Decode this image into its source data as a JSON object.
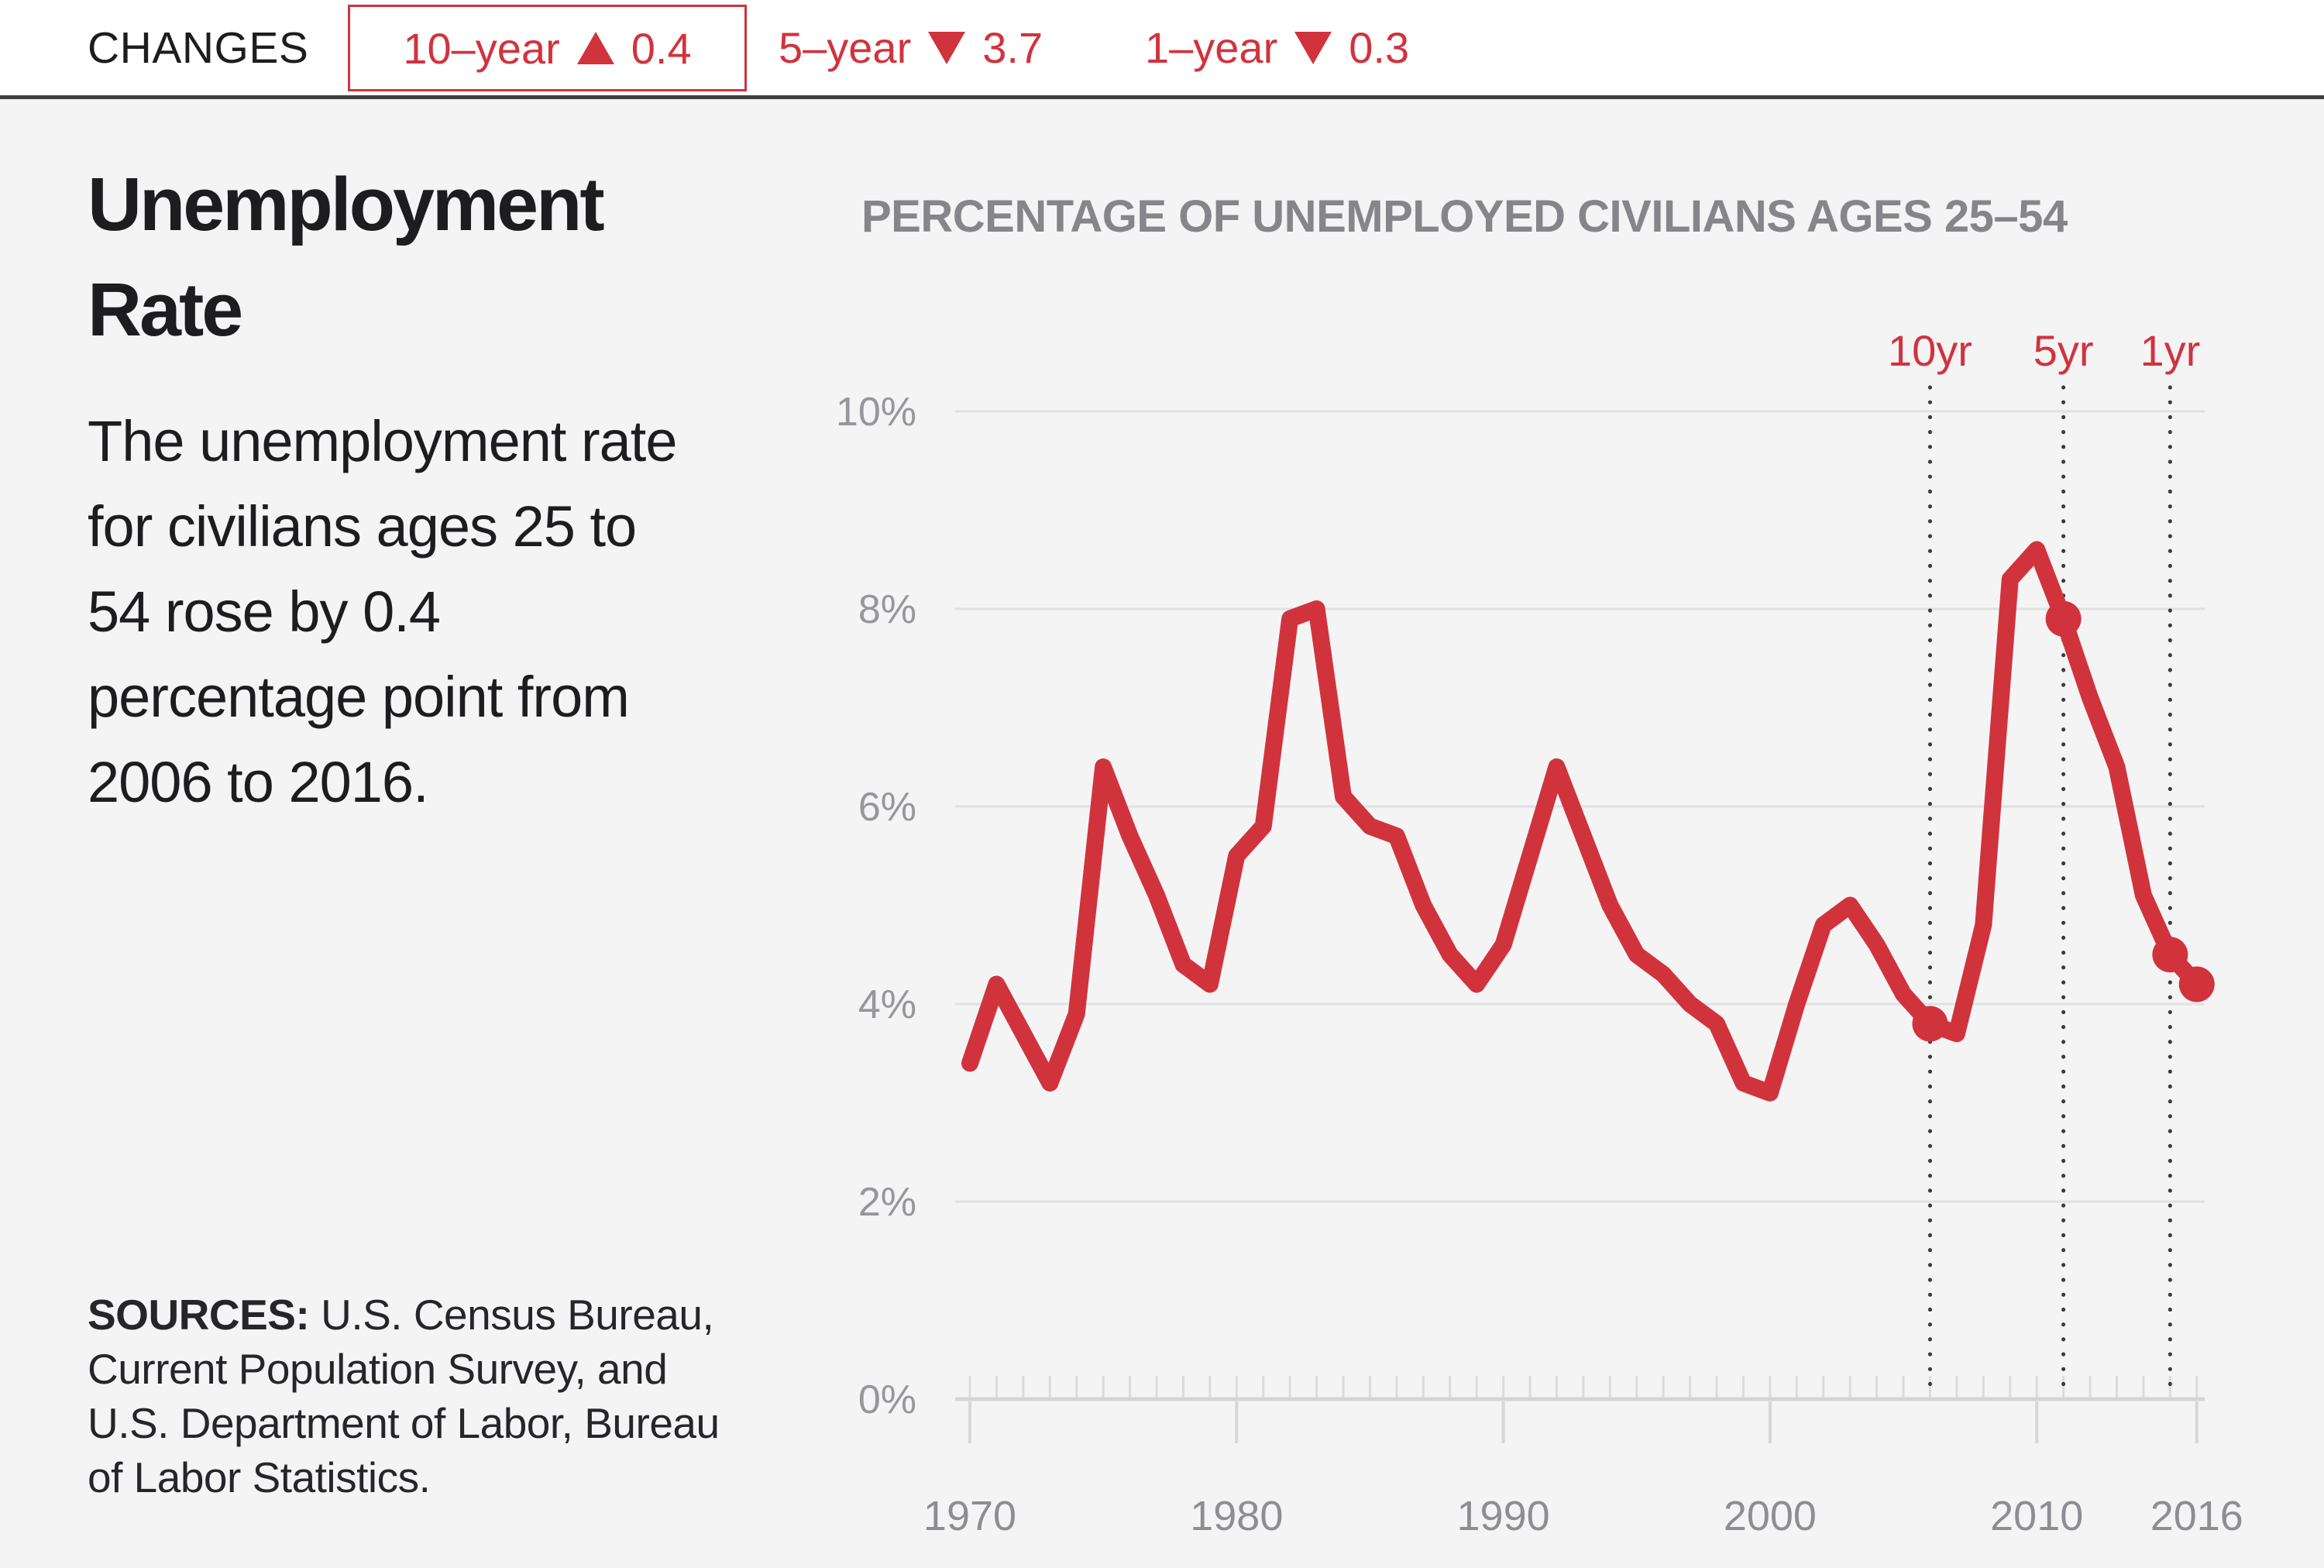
{
  "header": {
    "label": "CHANGES",
    "changes": [
      {
        "period": "10–year",
        "direction": "up",
        "value": "0.4",
        "selected": true
      },
      {
        "period": "5–year",
        "direction": "down",
        "value": "3.7",
        "selected": false
      },
      {
        "period": "1–year",
        "direction": "down",
        "value": "0.3",
        "selected": false
      }
    ]
  },
  "left_panel": {
    "title_line1": "Unemployment",
    "title_line2": "Rate",
    "description": "The unemployment rate for civilians ages 25 to 54 rose by 0.4 percentage point from 2006 to 2016.",
    "description_lines": [
      "The unemployment rate",
      "for civilians ages 25 to",
      "54 rose by 0.4",
      "percentage point from",
      "2006 to 2016."
    ],
    "sources_label": "SOURCES:",
    "sources_lines": [
      "U.S. Census Bureau,",
      "Current Population Survey, and",
      "U.S. Department of Labor, Bureau",
      "of Labor Statistics."
    ]
  },
  "chart": {
    "title": "PERCENTAGE OF UNEMPLOYED CIVILIANS AGES 25–54"
  },
  "chart_data": {
    "type": "line",
    "title": "PERCENTAGE OF UNEMPLOYED CIVILIANS AGES 25–54",
    "xlabel": "",
    "ylabel": "",
    "years": [
      1970,
      1971,
      1972,
      1973,
      1974,
      1975,
      1976,
      1977,
      1978,
      1979,
      1980,
      1981,
      1982,
      1983,
      1984,
      1985,
      1986,
      1987,
      1988,
      1989,
      1990,
      1991,
      1992,
      1993,
      1994,
      1995,
      1996,
      1997,
      1998,
      1999,
      2000,
      2001,
      2002,
      2003,
      2004,
      2005,
      2006,
      2007,
      2008,
      2009,
      2010,
      2011,
      2012,
      2013,
      2014,
      2015,
      2016
    ],
    "values": [
      3.4,
      4.2,
      3.7,
      3.2,
      3.9,
      6.4,
      5.7,
      5.1,
      4.4,
      4.2,
      5.5,
      5.8,
      7.9,
      8.0,
      6.1,
      5.8,
      5.7,
      5.0,
      4.5,
      4.2,
      4.6,
      5.5,
      6.4,
      5.7,
      5.0,
      4.5,
      4.3,
      4.0,
      3.8,
      3.2,
      3.1,
      4.0,
      4.8,
      5.0,
      4.6,
      4.1,
      3.8,
      3.7,
      4.8,
      8.3,
      8.6,
      7.9,
      7.1,
      6.4,
      5.1,
      4.5,
      4.2
    ],
    "xlim": [
      1969.5,
      2017
    ],
    "ylim": [
      0,
      10
    ],
    "grid": true,
    "legend": "none",
    "y_tick_values": [
      0,
      2,
      4,
      6,
      8,
      10
    ],
    "y_tick_labels": [
      "0%",
      "2%",
      "4%",
      "6%",
      "8%",
      "10%"
    ],
    "x_tick_years": [
      1970,
      1980,
      1990,
      2000,
      2010,
      2016
    ],
    "x_tick_labels": [
      "1970",
      "1980",
      "1990",
      "2000",
      "2010",
      "2016"
    ],
    "markers": [
      {
        "label": "10yr",
        "year": 2006,
        "value": 3.8
      },
      {
        "label": "5yr",
        "year": 2011,
        "value": 7.9
      },
      {
        "label": "1yr",
        "year": 2015,
        "value": 4.5
      }
    ],
    "end_point": {
      "year": 2016,
      "value": 4.2
    },
    "line_color": "#d1333d",
    "marker_line_color": "#39393d"
  },
  "colors": {
    "accent_red": "#d1333d",
    "background": "#f4f4f5",
    "header_background": "#ffffff",
    "header_rule": "#3f3f42",
    "gridline": "#e1e1e3",
    "axis_label_text": "#96969b",
    "chart_title_text": "#85858a",
    "body_text": "#1d1d20"
  }
}
